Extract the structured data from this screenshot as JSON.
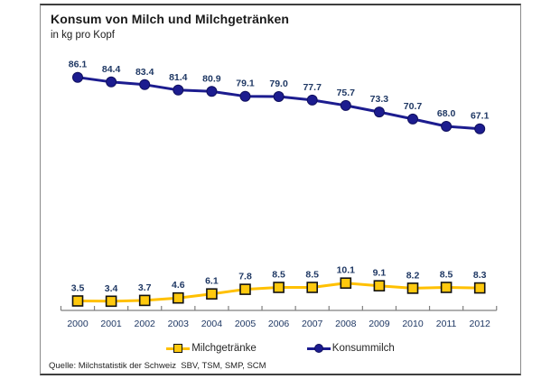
{
  "frame": {
    "title": "Konsum von Milch und Milchgetränken",
    "subtitle": "in kg pro Kopf",
    "source": "Quelle: Milchstatistik der Schweiz  SBV, TSM, SMP, SCM"
  },
  "legend": {
    "items": [
      {
        "label": "Milchgetränke",
        "marker": "square",
        "color": "#FFC000"
      },
      {
        "label": "Konsummilch",
        "marker": "circle",
        "color": "#1C1C8F"
      }
    ]
  },
  "colors": {
    "konsummilch_line": "#1C1C8F",
    "konsummilch_marker_stroke": "#10105E",
    "milchgetraenke_line": "#FFC000",
    "milchgetraenke_marker_fill": "#FFC90E",
    "milchgetraenke_marker_stroke": "#111111",
    "axis": "#7f7f7f",
    "label_text": "#1F3864"
  },
  "chart_data": {
    "type": "line",
    "title": "Konsum von Milch und Milchgetränken",
    "subtitle": "in kg pro Kopf",
    "xlabel": "",
    "ylabel": "kg pro Kopf",
    "ylim": [
      0,
      95
    ],
    "grid": false,
    "legend_position": "bottom",
    "categories": [
      "2000",
      "2001",
      "2002",
      "2003",
      "2004",
      "2005",
      "2006",
      "2007",
      "2008",
      "2009",
      "2010",
      "2011",
      "2012"
    ],
    "series": [
      {
        "name": "Konsummilch",
        "marker": "circle",
        "color": "#1C1C8F",
        "values": [
          86.1,
          84.4,
          83.4,
          81.4,
          80.9,
          79.1,
          79.0,
          77.7,
          75.7,
          73.3,
          70.7,
          68.0,
          67.1
        ]
      },
      {
        "name": "Milchgetränke",
        "marker": "square",
        "color": "#FFC000",
        "values": [
          3.5,
          3.4,
          3.7,
          4.6,
          6.1,
          7.8,
          8.5,
          8.5,
          10.1,
          9.1,
          8.2,
          8.5,
          8.3
        ]
      }
    ]
  }
}
